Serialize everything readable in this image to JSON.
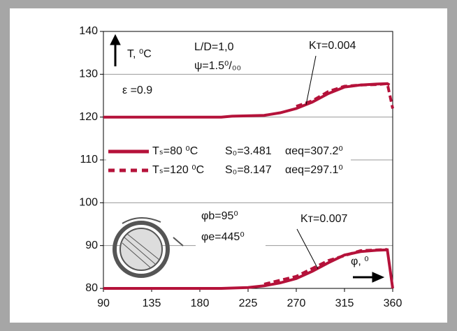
{
  "chart_data": {
    "type": "line",
    "x_label": "φ, ⁰",
    "y_label": "T, ⁰C",
    "xlim": [
      90,
      360
    ],
    "xticks": [
      90,
      135,
      180,
      225,
      270,
      315,
      360
    ],
    "ylim": [
      80,
      140
    ],
    "yticks": [
      80,
      90,
      100,
      110,
      120,
      130,
      140
    ],
    "grid": true,
    "series": [
      {
        "name": "Tₛ=80 ⁰C",
        "style": "solid",
        "color": "#b5123a",
        "x": [
          90,
          200,
          210,
          240,
          255,
          270,
          285,
          300,
          315,
          330,
          345,
          355,
          357
        ],
        "values": [
          120,
          120,
          120.2,
          120.4,
          121,
          122,
          123.5,
          125.5,
          127,
          127.5,
          127.7,
          127.8,
          127.5
        ]
      },
      {
        "name": "Tₛ=120 ⁰C",
        "style": "dashed",
        "color": "#b5123a",
        "x": [
          270,
          285,
          300,
          315,
          330,
          345,
          355,
          360
        ],
        "values": [
          122.5,
          123.8,
          126,
          127.2,
          127.5,
          127.6,
          127.8,
          122
        ]
      },
      {
        "style": "solid",
        "color": "#b5123a",
        "x": [
          90,
          200,
          225,
          240,
          255,
          270,
          285,
          300,
          315,
          330,
          345,
          355,
          360
        ],
        "values": [
          80,
          80,
          80.2,
          80.6,
          81.3,
          82.3,
          84,
          86,
          87.8,
          88.6,
          88.9,
          89,
          80
        ]
      },
      {
        "style": "dashed",
        "color": "#b5123a",
        "x": [
          240,
          270,
          300,
          330,
          355
        ],
        "values": [
          81,
          82.8,
          86.5,
          88.8,
          89.1
        ]
      }
    ],
    "legend_details": [
      [
        "S₀=3.481",
        "αeq=307.2⁰"
      ],
      [
        "S₀=8.147",
        "αeq=297.1⁰"
      ]
    ],
    "annotations": [
      "L/D=1,0",
      "ψ=1.5⁰/₀₀",
      "ε =0.9",
      "Kᴛ=0.004",
      "φb=95⁰",
      "φe=445⁰",
      "Kᴛ=0.007"
    ]
  }
}
